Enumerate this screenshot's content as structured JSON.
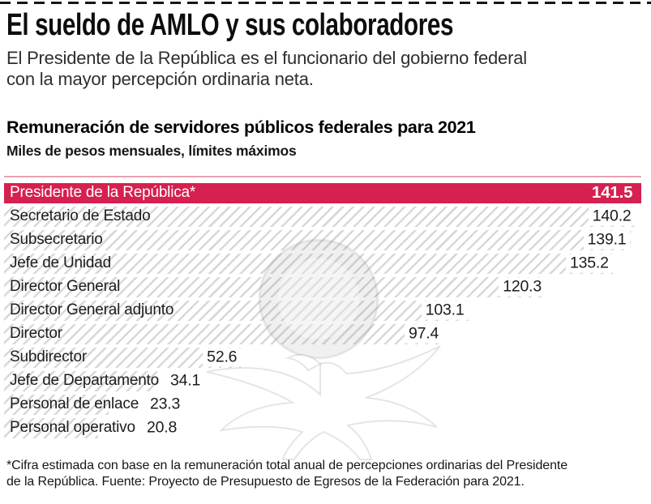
{
  "page": {
    "headline": "El sueldo de AMLO y sus colaboradores",
    "subtitle": "El Presidente de la República es el funcionario del gobierno federal con la mayor percepción ordinaria neta.",
    "footnote": "*Cifra estimada con base en la remuneración total anual de percepciones ordinarias del Presidente de la República. Fuente: Proyecto de Presupuesto de Egresos de la Federación para 2021."
  },
  "chart_data": {
    "type": "bar",
    "orientation": "horizontal",
    "title": "Remuneración de servidores públicos federales para 2021",
    "subtitle": "Miles de pesos mensuales, límites máximos",
    "unit": "miles de pesos mensuales",
    "xlim": [
      0,
      141.5
    ],
    "grid": false,
    "legend": "none",
    "categories": [
      "Presidente de la República*",
      "Secretario de Estado",
      "Subsecretario",
      "Jefe de Unidad",
      "Director General",
      "Director General adjunto",
      "Director",
      "Subdirector",
      "Jefe de Departamento",
      "Personal de enlace",
      "Personal operativo"
    ],
    "values": [
      141.5,
      140.2,
      139.1,
      135.2,
      120.3,
      103.1,
      97.4,
      52.6,
      34.1,
      23.3,
      20.8
    ],
    "highlight_index": 0,
    "colors": {
      "highlight_bar": "#d6204f",
      "hatch_line": "#d8d8d8",
      "top_rule": "#eaa3b4",
      "label_text": "#1c1c1c",
      "highlight_text": "#ffffff"
    },
    "watermark": "el-financiero-eagle-emblem"
  }
}
